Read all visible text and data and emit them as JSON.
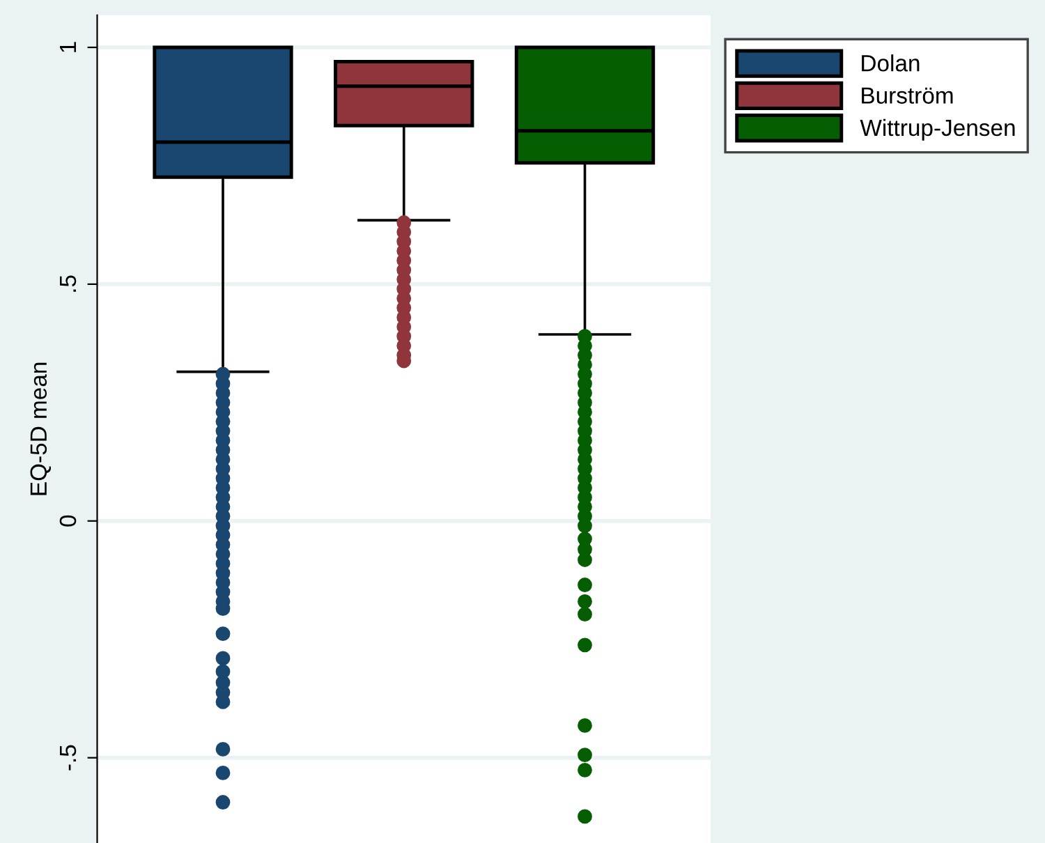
{
  "chart_data": {
    "type": "box",
    "ylabel": "EQ-5D mean",
    "categories": [
      null
    ],
    "ylim": [
      -0.68,
      1.068
    ],
    "yticks": [
      {
        "value": -0.5,
        "label": "-.5"
      },
      0,
      {
        "value": 0.5,
        "label": ".5"
      },
      1
    ],
    "tick_labels": "y",
    "grid": "y",
    "legend": "top right",
    "series": [
      {
        "name": "Dolan",
        "color": "#1a476f",
        "boxes": [
          {
            "low": 0.315,
            "q1": 0.726,
            "median": 0.8,
            "q3": 1,
            "high": 1,
            "outliers": [
              0.31,
              0.29,
              0.27,
              0.25,
              0.23,
              0.21,
              0.19,
              0.17,
              0.15,
              0.13,
              0.11,
              0.09,
              0.07,
              0.05,
              0.03,
              0.01,
              -0.01,
              -0.03,
              -0.05,
              -0.07,
              -0.09,
              -0.11,
              -0.13,
              -0.15,
              -0.17,
              -0.185,
              -0.238,
              -0.29,
              -0.318,
              -0.341,
              -0.362,
              -0.382,
              -0.482,
              -0.532,
              -0.594
            ]
          }
        ]
      },
      {
        "name": "Burström",
        "color": "#90353b",
        "boxes": [
          {
            "low": 0.635,
            "q1": 0.835,
            "median": 0.918,
            "q3": 0.97,
            "high": 0.97,
            "outliers": [
              0.63,
              0.61,
              0.59,
              0.57,
              0.55,
              0.53,
              0.51,
              0.49,
              0.47,
              0.45,
              0.43,
              0.41,
              0.39,
              0.37,
              0.35,
              0.338
            ]
          }
        ]
      },
      {
        "name": "Wittrup-Jensen",
        "color": "#055e02",
        "boxes": [
          {
            "low": 0.394,
            "q1": 0.756,
            "median": 0.824,
            "q3": 1,
            "high": 1,
            "outliers": [
              0.39,
              0.37,
              0.35,
              0.33,
              0.31,
              0.29,
              0.27,
              0.25,
              0.23,
              0.21,
              0.19,
              0.17,
              0.15,
              0.13,
              0.11,
              0.09,
              0.07,
              0.05,
              0.03,
              0.01,
              -0.01,
              -0.038,
              -0.06,
              -0.082,
              -0.135,
              -0.17,
              -0.197,
              -0.262,
              -0.432,
              -0.494,
              -0.526,
              -0.624
            ]
          }
        ]
      }
    ]
  }
}
